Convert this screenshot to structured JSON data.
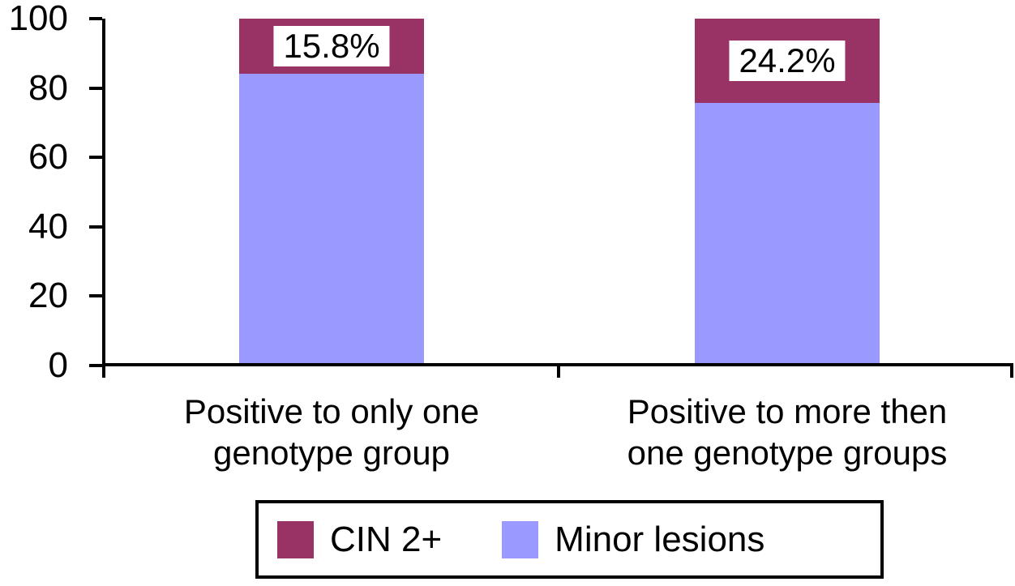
{
  "chart_data": {
    "type": "bar",
    "subtype": "stacked-vertical",
    "title": "",
    "xlabel": "",
    "ylabel": "",
    "ylim": [
      0,
      100
    ],
    "y_ticks": [
      0,
      20,
      40,
      60,
      80,
      100
    ],
    "grid": false,
    "legend_position": "bottom",
    "background_color": "#ffffff",
    "axis_color": "#000000",
    "text_color": "#000000",
    "categories": [
      "Positive to only one genotype group",
      "Positive to more then one genotype groups"
    ],
    "categories_lines": [
      [
        "Positive to only one",
        "genotype group"
      ],
      [
        "Positive to more then",
        "one genotype groups"
      ]
    ],
    "series": [
      {
        "name": "CIN 2+",
        "color": "#993366",
        "values": [
          15.8,
          24.2
        ]
      },
      {
        "name": "Minor lesions",
        "color": "#9999FF",
        "values": [
          84.2,
          75.8
        ]
      }
    ],
    "value_labels": [
      "15.8%",
      "24.2%"
    ]
  }
}
